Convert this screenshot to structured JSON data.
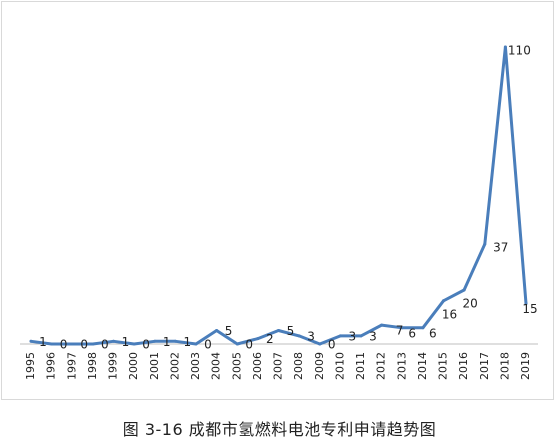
{
  "chart_data": {
    "type": "line",
    "title": "",
    "xlabel": "",
    "ylabel": "",
    "categories": [
      "1995",
      "1996",
      "1997",
      "1998",
      "1999",
      "2000",
      "2001",
      "2002",
      "2003",
      "2004",
      "2005",
      "2006",
      "2007",
      "2008",
      "2009",
      "2010",
      "2011",
      "2012",
      "2013",
      "2014",
      "2015",
      "2016",
      "2017",
      "2018",
      "2019"
    ],
    "values": [
      1,
      0,
      0,
      0,
      1,
      0,
      1,
      1,
      0,
      5,
      0,
      2,
      5,
      3,
      0,
      3,
      3,
      7,
      6,
      6,
      16,
      20,
      37,
      110,
      15
    ],
    "data_labels": [
      "1",
      "0",
      "0",
      "0",
      "1",
      "0",
      "1",
      "1",
      "0",
      "5",
      "0",
      "2",
      "5",
      "3",
      "0",
      "3",
      "3",
      "7",
      "6",
      "6",
      "16",
      "20",
      "37",
      "110",
      "15"
    ],
    "ylim": [
      0,
      120
    ],
    "grid": false,
    "legend": "none",
    "line_color": "#4a7ebb"
  },
  "caption": "图 3-16 成都市氢燃料电池专利申请趋势图"
}
